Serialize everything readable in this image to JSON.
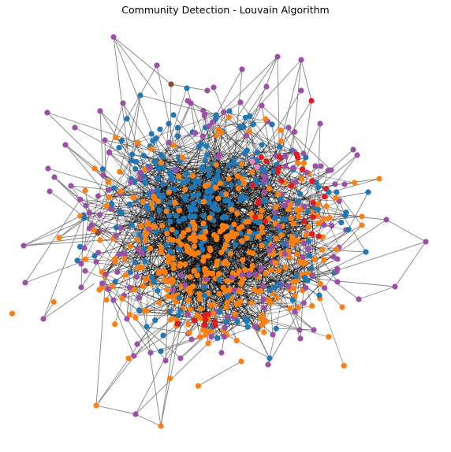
{
  "figure": {
    "title": "Community Detection - Louvain Algorithm"
  },
  "graph": {
    "type": "network",
    "layout": "spring",
    "edge_color_outer": "#777777",
    "edge_color_core": "#000000",
    "communities": [
      {
        "color": "#1f77b4"
      },
      {
        "color": "#ff7f0e"
      },
      {
        "color": "#9b4fa6"
      },
      {
        "color": "#e41a1c"
      },
      {
        "color": "#8c4a2a"
      },
      {
        "color": "#f781bf"
      },
      {
        "color": "#999999"
      }
    ]
  }
}
